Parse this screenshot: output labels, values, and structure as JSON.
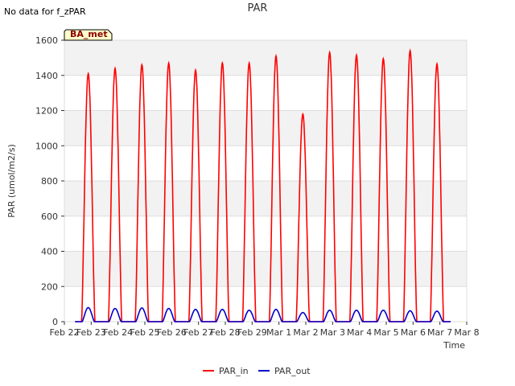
{
  "header": {
    "status_text": "No data for f_zPAR"
  },
  "chart_data": {
    "type": "line",
    "title": "PAR",
    "xlabel": "Time",
    "ylabel": "PAR (umol/m2/s)",
    "ylim": [
      0,
      1600
    ],
    "yticks": [
      0,
      200,
      400,
      600,
      800,
      1000,
      1200,
      1400,
      1600
    ],
    "xlim": [
      0,
      15
    ],
    "x_tick_labels": [
      "Feb 22",
      "Feb 23",
      "Feb 24",
      "Feb 25",
      "Feb 26",
      "Feb 27",
      "Feb 28",
      "Feb 29",
      "Mar 1",
      "Mar 2",
      "Mar 3",
      "Mar 4",
      "Mar 5",
      "Mar 6",
      "Mar 7",
      "Mar 8"
    ],
    "grid": true,
    "badge": "BA_met",
    "series": [
      {
        "name": "PAR_in",
        "color": "#ff0000",
        "day_peaks": [
          1410,
          1440,
          1460,
          1470,
          1430,
          1470,
          1470,
          1510,
          1180,
          1530,
          1515,
          1495,
          1540,
          1465
        ]
      },
      {
        "name": "PAR_out",
        "color": "#0000cc",
        "day_peaks": [
          80,
          75,
          78,
          75,
          70,
          70,
          65,
          70,
          52,
          65,
          65,
          65,
          62,
          60
        ]
      }
    ]
  }
}
